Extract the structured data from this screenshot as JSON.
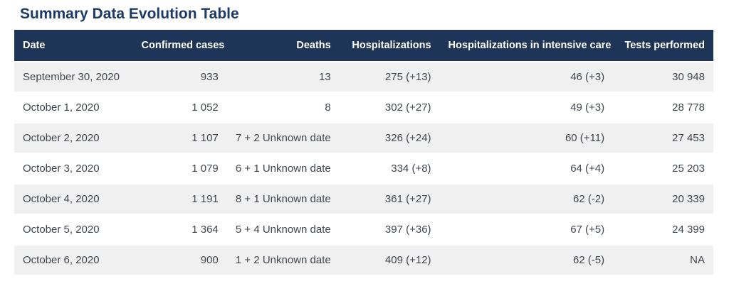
{
  "page_title": "Summary Data Evolution Table",
  "chart_data": {
    "type": "table",
    "title": "Summary Data Evolution Table",
    "columns": [
      "Date",
      "Confirmed cases",
      "Deaths",
      "Hospitalizations",
      "Hospitalizations in intensive care",
      "Tests performed"
    ],
    "rows": [
      [
        "September 30, 2020",
        "933",
        "13",
        "275 (+13)",
        "46 (+3)",
        "30 948"
      ],
      [
        "October 1, 2020",
        "1 052",
        "8",
        "302 (+27)",
        "49 (+3)",
        "28 778"
      ],
      [
        "October 2, 2020",
        "1 107",
        "7 + 2 Unknown date",
        "326 (+24)",
        "60 (+11)",
        "27 453"
      ],
      [
        "October 3, 2020",
        "1 079",
        "6 + 1 Unknown date",
        "334 (+8)",
        "64 (+4)",
        "25 203"
      ],
      [
        "October 4, 2020",
        "1 191",
        "8 + 1 Unknown date",
        "361 (+27)",
        "62 (-2)",
        "20 339"
      ],
      [
        "October 5, 2020",
        "1 364",
        "5 + 4 Unknown date",
        "397 (+36)",
        "67 (+5)",
        "24 399"
      ],
      [
        "October 6, 2020",
        "900",
        "1 + 2 Unknown date",
        "409 (+12)",
        "62 (-5)",
        "NA"
      ]
    ]
  },
  "colors": {
    "header_bg": "#1f3557",
    "header_text": "#ffffff",
    "title_text": "#1b3a64",
    "row_alt_bg": "#f0f0f0",
    "row_bg": "#ffffff",
    "cell_text": "#41474f"
  }
}
